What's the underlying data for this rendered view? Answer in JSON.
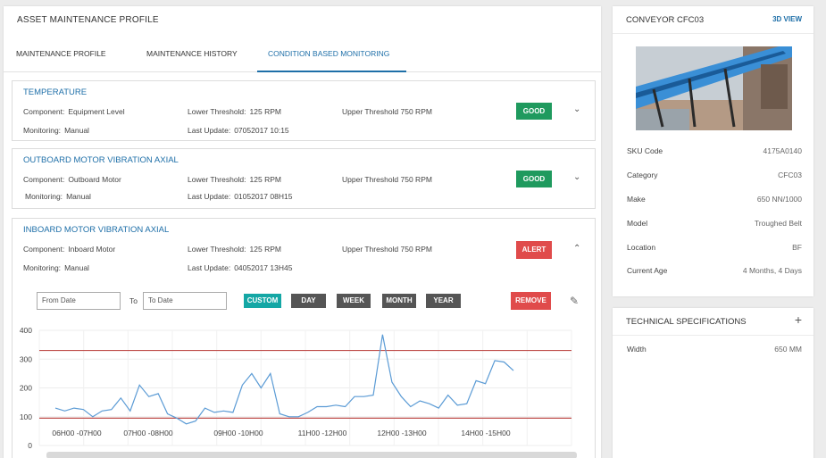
{
  "main": {
    "title": "ASSET MAINTENANCE PROFILE",
    "tabs": [
      {
        "label": "MAINTENANCE PROFILE"
      },
      {
        "label": "MAINTENANCE HISTORY"
      },
      {
        "label": "CONDITION BASED MONITORING",
        "active": true
      }
    ]
  },
  "cards": [
    {
      "title": "TEMPERATURE",
      "component_label": "Component:",
      "component": "Equipment Level",
      "lower_label": "Lower Threshold:",
      "lower": "125 RPM",
      "upper": "Upper Threshold 750 RPM",
      "monitoring_label": "Monitoring:",
      "monitoring": "Manual",
      "update_label": "Last Update:",
      "update": "07052017 10:15",
      "status": "GOOD",
      "chevron": "chevron-down-icon"
    },
    {
      "title": "OUTBOARD MOTOR VIBRATION AXIAL",
      "component_label": "Component:",
      "component": "Outboard Motor",
      "lower_label": "Lower Threshold:",
      "lower": "125 RPM",
      "upper": "Upper Threshold 750 RPM",
      "monitoring_label": "Monitoring:",
      "monitoring": "Manual",
      "update_label": "Last Update:",
      "update": "01052017  08H15",
      "status": "GOOD",
      "chevron": "chevron-down-icon"
    },
    {
      "title": "INBOARD MOTOR VIBRATION AXIAL",
      "component_label": "Component:",
      "component": "Inboard Motor",
      "lower_label": "Lower Threshold:",
      "lower": "125 RPM",
      "upper": "Upper Threshold 750 RPM",
      "monitoring_label": "Monitoring:",
      "monitoring": "Manual",
      "update_label": "Last Update:",
      "update": "04052017    13H45",
      "status": "ALERT",
      "chevron": "chevron-up-icon"
    }
  ],
  "filters": {
    "from_placeholder": "From Date",
    "to_label": "To",
    "to_placeholder": "To Date",
    "buttons": [
      "CUSTOM",
      "DAY",
      "WEEK",
      "MONTH",
      "YEAR"
    ],
    "remove": "REMOVE"
  },
  "chart_data": {
    "type": "line",
    "ylim": [
      0,
      400
    ],
    "yticks": [
      "400",
      "300",
      "200",
      "100",
      "0"
    ],
    "xticks": [
      "06H00 -07H00",
      "07H00 -08H00",
      "09H00 -10H00",
      "11H00 -12H00",
      "12H00 -13H00",
      "14H00 -15H00"
    ],
    "thresholds": [
      330,
      95
    ],
    "values": [
      130,
      120,
      130,
      125,
      100,
      120,
      125,
      165,
      120,
      210,
      170,
      180,
      110,
      95,
      75,
      85,
      130,
      115,
      120,
      115,
      210,
      250,
      200,
      250,
      110,
      100,
      100,
      115,
      135,
      135,
      140,
      135,
      170,
      170,
      175,
      385,
      220,
      170,
      135,
      155,
      145,
      130,
      175,
      140,
      145,
      225,
      215,
      295,
      290,
      260
    ],
    "line_color": "#5b9bd5",
    "threshold_color": "#c0504d"
  },
  "asset": {
    "title": "CONVEYOR CFC03",
    "view_link": "3D VIEW",
    "props": [
      {
        "k": "SKU Code",
        "v": "4175A0140"
      },
      {
        "k": "Category",
        "v": "CFC03"
      },
      {
        "k": "Make",
        "v": "650 NN/1000"
      },
      {
        "k": "Model",
        "v": "Troughed Belt"
      },
      {
        "k": "Location",
        "v": "BF"
      },
      {
        "k": "Current Age",
        "v": "4 Months, 4 Days"
      }
    ]
  },
  "specs": {
    "title": "TECHNICAL SPECIFICATIONS",
    "plus": "+",
    "rows": [
      {
        "k": "Width",
        "v": "650 MM"
      }
    ]
  }
}
